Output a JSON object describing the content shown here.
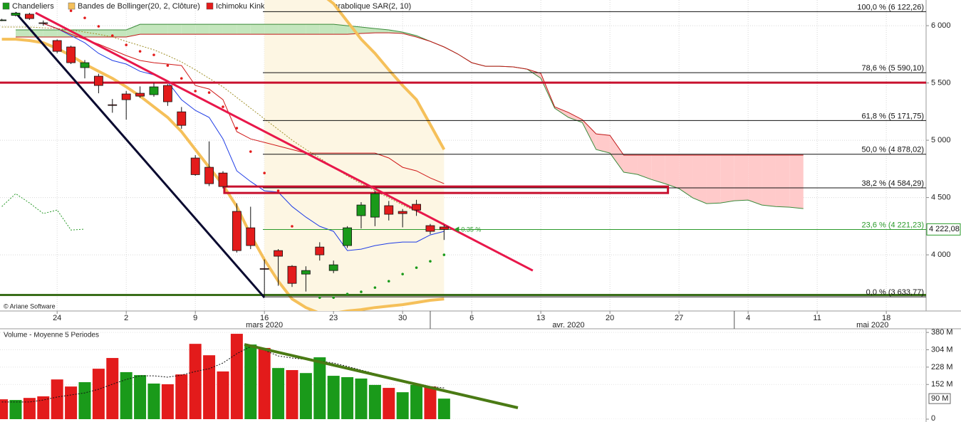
{
  "legend": [
    {
      "name": "Chandeliers",
      "color": "#1a9a1a"
    },
    {
      "name": "Bandes de Bollinger(20, 2, Clôture)",
      "color": "#f5c05a"
    },
    {
      "name": "Ichimoku Kinko Hyo(26, 9)",
      "color": "#e31b1b"
    },
    {
      "name": "Parabolique SAR(2, 10)",
      "color": "#1a9a1a"
    }
  ],
  "copyright": "© Ariane Software",
  "chart_data": [
    {
      "type": "candlestick",
      "x": [
        -1,
        0,
        1,
        2,
        3,
        4,
        5,
        6,
        7,
        8,
        9,
        10,
        11,
        12,
        13,
        14,
        15,
        16,
        17,
        18,
        19,
        20,
        21,
        22,
        23,
        24,
        25,
        26,
        27,
        28,
        29,
        30,
        31
      ],
      "open": [
        6050,
        6090,
        6100,
        6025,
        5870,
        5814,
        5634,
        5559,
        5310,
        5404,
        5410,
        5398,
        5478,
        5248,
        4845,
        4764,
        4714,
        4379,
        4236,
        3880,
        4037,
        3900,
        3832,
        4068,
        3863,
        4081,
        4342,
        4329,
        4429,
        4379,
        4441,
        4255,
        4243
      ],
      "high": [
        6060,
        6120,
        6112,
        6045,
        5880,
        5825,
        5700,
        5580,
        5360,
        5430,
        5470,
        5500,
        5490,
        5290,
        4870,
        4990,
        4730,
        4450,
        4420,
        3960,
        4050,
        3910,
        3900,
        4110,
        3950,
        4250,
        4460,
        4560,
        4470,
        4400,
        4480,
        4270,
        4262
      ],
      "low": [
        6040,
        6080,
        6050,
        6000,
        5760,
        5665,
        5540,
        5410,
        5240,
        5180,
        5370,
        5380,
        5300,
        5100,
        4690,
        4600,
        4580,
        4020,
        4050,
        3640,
        3730,
        3720,
        3680,
        3950,
        3840,
        4060,
        4230,
        4250,
        4300,
        4240,
        4340,
        4180,
        4130
      ],
      "close": [
        6050,
        6110,
        6062,
        6020,
        5776,
        5677,
        5677,
        5478,
        5305,
        5354,
        5385,
        5466,
        5336,
        5130,
        4700,
        4621,
        4596,
        4037,
        4081,
        3876,
        3988,
        3751,
        3863,
        4000,
        3913,
        4236,
        4435,
        4534,
        4354,
        4360,
        4391,
        4205,
        4222
      ],
      "up_color": "#1a9a1a",
      "down_color": "#e31b1b",
      "xlim": [
        -1.134,
        65.88
      ],
      "ylim": [
        3510,
        6224
      ],
      "xticks": [
        {
          "value": 3,
          "label": "24"
        },
        {
          "value": 8,
          "label": "2"
        },
        {
          "value": 13,
          "label": "9"
        },
        {
          "value": 18,
          "label": "16"
        },
        {
          "value": 23,
          "label": "23"
        },
        {
          "value": 28,
          "label": "30"
        },
        {
          "value": 33,
          "label": "6"
        },
        {
          "value": 38,
          "label": "13"
        },
        {
          "value": 43,
          "label": "20"
        },
        {
          "value": 48,
          "label": "27"
        },
        {
          "value": 53,
          "label": "4"
        },
        {
          "value": 58,
          "label": "11"
        },
        {
          "value": 63,
          "label": "18"
        }
      ],
      "months": [
        {
          "value": 18,
          "label": "mars 2020"
        },
        {
          "value": 40,
          "label": "avr. 2020"
        },
        {
          "value": 62,
          "label": "mai 2020"
        }
      ],
      "month_boundaries": [
        30,
        52
      ],
      "yticks": [
        {
          "value": 4000,
          "label": "4 000"
        },
        {
          "value": 4500,
          "label": "4 500"
        },
        {
          "value": 5000,
          "label": "5 000"
        },
        {
          "value": 5500,
          "label": "5 500"
        },
        {
          "value": 6000,
          "label": "6 000"
        }
      ],
      "grid": true,
      "bollinger": {
        "color": "#f5c05a",
        "middle_color": "#a0902a",
        "fill": "#fdf6e3",
        "upper": [
          null,
          null,
          null,
          null,
          null,
          null,
          null,
          null,
          null,
          null,
          null,
          null,
          null,
          null,
          null,
          null,
          null,
          null,
          null,
          6600,
          6500,
          6420,
          6350,
          6286,
          6193,
          6037,
          5882,
          5758,
          5615,
          5478,
          5354,
          5137,
          4919
        ],
        "middle": [
          5988,
          5988,
          5988,
          5981,
          5975,
          5963,
          5944,
          5925,
          5901,
          5863,
          5826,
          5789,
          5739,
          5683,
          5615,
          5540,
          5466,
          5373,
          5280,
          5187,
          5094,
          5001,
          4920,
          4845,
          4764,
          4689,
          4621,
          4559,
          4497,
          4435,
          4379,
          4323,
          4273
        ],
        "lower": [
          5882,
          5882,
          5870,
          5851,
          5801,
          5739,
          5665,
          5602,
          5540,
          5466,
          5385,
          5292,
          5199,
          5075,
          4919,
          4764,
          4609,
          4422,
          4174,
          3957,
          3770,
          3615,
          3540,
          3491,
          3491,
          3510,
          3522,
          3540,
          3553,
          3565,
          3584,
          3603,
          3615
        ]
      },
      "ichimoku": {
        "tenkan_color": "#1e3ce6",
        "kijun_color": "#d01818",
        "span_a_color": "#3a8a3a",
        "span_b_color": "#c01818",
        "bull_fill": "#c4e6bd",
        "bear_fill": "#ffcaca",
        "chikou_color": "#2a9a2a",
        "tenkan": [
          null,
          null,
          null,
          6019,
          5975,
          5913,
          5851,
          5758,
          5696,
          5665,
          5602,
          5571,
          5509,
          5354,
          5261,
          5199,
          5012,
          4733,
          4640,
          4559,
          4547,
          4422,
          4329,
          4249,
          4205,
          4037,
          4050,
          4081,
          4100,
          4112,
          4112,
          4174,
          4205
        ],
        "kijun": [
          null,
          null,
          null,
          6019,
          5975,
          5925,
          5882,
          5839,
          5789,
          5739,
          5696,
          5677,
          5665,
          5652,
          5478,
          5447,
          5354,
          5075,
          5012,
          4981,
          4950,
          4919,
          4888,
          4888,
          4888,
          4888,
          4888,
          4888,
          4845,
          4764,
          4733,
          4671,
          4621
        ],
        "span_x": [
          0,
          1,
          2,
          3,
          4,
          5,
          6,
          7,
          8,
          9,
          10,
          11,
          12,
          13,
          14,
          15,
          16,
          17,
          18,
          19,
          20,
          21,
          22,
          23,
          24,
          25,
          26,
          27,
          28,
          29,
          30,
          31,
          32,
          33,
          34,
          35,
          36,
          37,
          38,
          39,
          40,
          41,
          42,
          43,
          44,
          45,
          46,
          47,
          48,
          49,
          50,
          51,
          52,
          53,
          54,
          55,
          56,
          57
        ],
        "span_a": [
          5963,
          5963,
          5963,
          5963,
          5963,
          5963,
          5963,
          5963,
          5963,
          6012,
          6012,
          6012,
          6012,
          6012,
          6012,
          6012,
          6012,
          6012,
          6012,
          6012,
          6012,
          6012,
          6012,
          6012,
          6000,
          5988,
          5975,
          5963,
          5944,
          5913,
          5863,
          5814,
          5752,
          5677,
          5646,
          5646,
          5640,
          5621,
          5541,
          5280,
          5199,
          5155,
          4919,
          4888,
          4721,
          4702,
          4658,
          4621,
          4578,
          4497,
          4447,
          4453,
          4472,
          4478,
          4435,
          4422,
          4416,
          4404
        ],
        "span_b": [
          5901,
          5901,
          5901,
          5901,
          5901,
          5901,
          5901,
          5901,
          5901,
          5925,
          5925,
          5925,
          5925,
          5925,
          5925,
          5925,
          5925,
          5925,
          5925,
          5925,
          5925,
          5925,
          5925,
          5925,
          5925,
          5932,
          5938,
          5938,
          5932,
          5901,
          5863,
          5814,
          5752,
          5677,
          5646,
          5646,
          5640,
          5621,
          5584,
          5292,
          5242,
          5180,
          5056,
          5043,
          4870,
          4870,
          4870,
          4870,
          4870,
          4870,
          4870,
          4870,
          4870,
          4870,
          4870,
          4870,
          4870,
          4870
        ],
        "chikou_x": [
          -1,
          0,
          1,
          2,
          3,
          4,
          5
        ],
        "chikou": [
          4422,
          4534,
          4453,
          4360,
          4391,
          4217,
          4224
        ]
      },
      "sar": {
        "up_color": "#1a9a1a",
        "down_color": "#e31b1b",
        "values": [
          null,
          null,
          null,
          null,
          null,
          6130,
          6068,
          5994,
          5913,
          5832,
          5776,
          5745,
          5652,
          5540,
          5429,
          5416,
          5292,
          5106,
          4901,
          4714,
          4559,
          4249,
          null,
          3627,
          3627,
          3658,
          3677,
          3714,
          3770,
          3832,
          3888,
          3944,
          4000
        ]
      },
      "fibonacci": {
        "levels": [
          {
            "value": 6122.26,
            "label": "100,0 % (6 122,26)"
          },
          {
            "value": 5590.1,
            "label": "78,6 % (5 590,10)"
          },
          {
            "value": 5171.75,
            "label": "61,8 % (5 171,75)"
          },
          {
            "value": 4878.02,
            "label": "50,0 % (4 878,02)"
          },
          {
            "value": 4584.29,
            "label": "38,2 % (4 584,29)"
          },
          {
            "value": 4221.23,
            "label": "23,6 % (4 221,23)"
          },
          {
            "value": 3633.77,
            "label": "0,0 % (3 633,77)"
          }
        ],
        "colors": [
          "#111111",
          "#111111",
          "#111111",
          "#111111",
          "#111111",
          "#2a9a2a",
          "#111111"
        ]
      },
      "trendlines": [
        {
          "color": "#0a0a30",
          "x": [
            0,
            18
          ],
          "values": [
            6112,
            3627
          ]
        },
        {
          "color": "#e8174a",
          "x": [
            1.44,
            37.42
          ],
          "values": [
            6112,
            3863
          ]
        }
      ],
      "hlines": [
        {
          "color": "#c8102e",
          "value": 5503
        },
        {
          "color": "#3a6e1a",
          "value": 3650
        }
      ],
      "rectangles": [
        {
          "color": "#c8102e",
          "x": [
            15.1,
            47.2
          ],
          "values": [
            4596,
            4540
          ]
        }
      ],
      "last_price": {
        "value": 4222.08,
        "label": "4 222,08",
        "color": "#2a9a2a"
      },
      "change": {
        "value": 0.35,
        "label": "0.35 %"
      }
    },
    {
      "type": "bar",
      "title": "Volume  - Moyenne 5 Periodes",
      "x": [
        -1,
        0,
        1,
        2,
        3,
        4,
        5,
        6,
        7,
        8,
        9,
        10,
        11,
        12,
        13,
        14,
        15,
        16,
        17,
        18,
        19,
        20,
        21,
        22,
        23,
        24,
        25,
        26,
        27,
        28,
        29,
        30,
        31
      ],
      "values": [
        87,
        84,
        93,
        100,
        174,
        143,
        162,
        221,
        268,
        206,
        193,
        156,
        153,
        196,
        330,
        280,
        209,
        374,
        327,
        312,
        224,
        215,
        202,
        271,
        190,
        184,
        178,
        150,
        137,
        118,
        150,
        143,
        90
      ],
      "colors": [
        "#e31b1b",
        "#1a9a1a",
        "#e31b1b",
        "#e31b1b",
        "#e31b1b",
        "#e31b1b",
        "#1a9a1a",
        "#e31b1b",
        "#e31b1b",
        "#1a9a1a",
        "#1a9a1a",
        "#1a9a1a",
        "#e31b1b",
        "#e31b1b",
        "#e31b1b",
        "#e31b1b",
        "#e31b1b",
        "#e31b1b",
        "#1a9a1a",
        "#e31b1b",
        "#1a9a1a",
        "#e31b1b",
        "#1a9a1a",
        "#1a9a1a",
        "#1a9a1a",
        "#1a9a1a",
        "#1a9a1a",
        "#1a9a1a",
        "#e31b1b",
        "#1a9a1a",
        "#1a9a1a",
        "#e31b1b",
        "#1a9a1a"
      ],
      "ma": [
        75,
        75,
        75,
        84,
        97,
        106,
        115,
        131,
        153,
        174,
        190,
        190,
        184,
        193,
        209,
        221,
        246,
        287,
        318,
        302,
        277,
        268,
        262,
        255,
        246,
        231,
        215,
        199,
        184,
        168,
        153,
        143,
        137
      ],
      "ma_color": "#111111",
      "xlim": [
        -1.134,
        65.88
      ],
      "ylim": [
        0,
        396
      ],
      "yticks": [
        {
          "value": 380,
          "label": "380 M"
        },
        {
          "value": 304,
          "label": "304 M"
        },
        {
          "value": 228,
          "label": "228 M"
        },
        {
          "value": 152,
          "label": "152 M"
        },
        0
      ],
      "last_label": {
        "value": 90,
        "label": "90 M"
      },
      "trendline": {
        "color": "#4a7a14",
        "x": [
          16.55,
          36.34
        ],
        "values": [
          327,
          50
        ]
      }
    }
  ]
}
